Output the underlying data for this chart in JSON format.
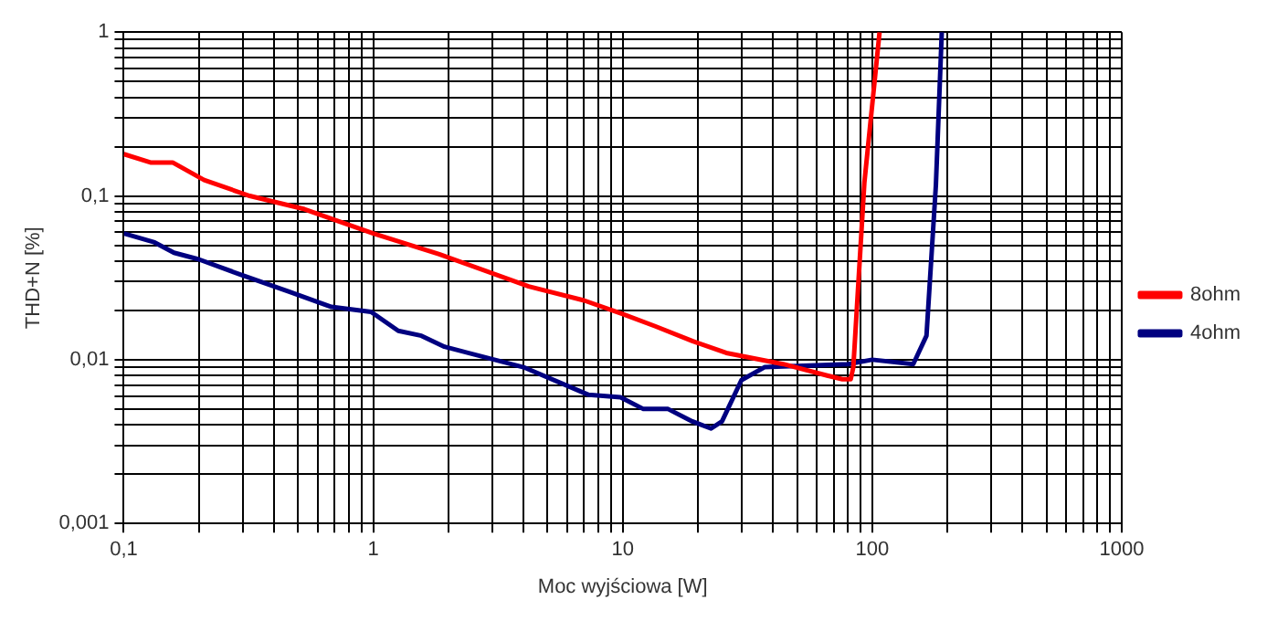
{
  "chart_data": {
    "type": "line",
    "xlabel": "Moc wyjściowa [W]",
    "ylabel": "THD+N [%]",
    "log": "xy",
    "grid": true,
    "legend": "right",
    "marker": "none",
    "line_style": "solid",
    "xlim": [
      0.1,
      1000
    ],
    "ylim": [
      0.001,
      1
    ],
    "xticks": [
      {
        "value": 0.1,
        "label": "0,1"
      },
      {
        "value": 0.2,
        "label": null
      },
      {
        "value": 0.3,
        "label": null
      },
      {
        "value": 0.4,
        "label": null
      },
      {
        "value": 0.5,
        "label": null
      },
      {
        "value": 0.6,
        "label": null
      },
      {
        "value": 0.7,
        "label": null
      },
      {
        "value": 0.8,
        "label": null
      },
      {
        "value": 0.9,
        "label": null
      },
      1,
      {
        "value": 2,
        "label": null
      },
      {
        "value": 3,
        "label": null
      },
      {
        "value": 4,
        "label": null
      },
      {
        "value": 5,
        "label": null
      },
      {
        "value": 6,
        "label": null
      },
      {
        "value": 7,
        "label": null
      },
      {
        "value": 8,
        "label": null
      },
      {
        "value": 9,
        "label": null
      },
      10,
      {
        "value": 20,
        "label": null
      },
      {
        "value": 30,
        "label": null
      },
      {
        "value": 40,
        "label": null
      },
      {
        "value": 50,
        "label": null
      },
      {
        "value": 60,
        "label": null
      },
      {
        "value": 70,
        "label": null
      },
      {
        "value": 80,
        "label": null
      },
      {
        "value": 90,
        "label": null
      },
      100,
      {
        "value": 200,
        "label": null
      },
      {
        "value": 300,
        "label": null
      },
      {
        "value": 400,
        "label": null
      },
      {
        "value": 500,
        "label": null
      },
      {
        "value": 600,
        "label": null
      },
      {
        "value": 700,
        "label": null
      },
      {
        "value": 800,
        "label": null
      },
      {
        "value": 900,
        "label": null
      },
      1000
    ],
    "yticks": [
      {
        "value": 0.001,
        "label": "0,001"
      },
      {
        "value": 0.002,
        "label": null
      },
      {
        "value": 0.003,
        "label": null
      },
      {
        "value": 0.004,
        "label": null
      },
      {
        "value": 0.005,
        "label": null
      },
      {
        "value": 0.006,
        "label": null
      },
      {
        "value": 0.007,
        "label": null
      },
      {
        "value": 0.008,
        "label": null
      },
      {
        "value": 0.009,
        "label": null
      },
      {
        "value": 0.01,
        "label": "0,01"
      },
      {
        "value": 0.02,
        "label": null
      },
      {
        "value": 0.03,
        "label": null
      },
      {
        "value": 0.04,
        "label": null
      },
      {
        "value": 0.05,
        "label": null
      },
      {
        "value": 0.06,
        "label": null
      },
      {
        "value": 0.07,
        "label": null
      },
      {
        "value": 0.08,
        "label": null
      },
      {
        "value": 0.09,
        "label": null
      },
      {
        "value": 0.1,
        "label": "0,1"
      },
      {
        "value": 0.2,
        "label": null
      },
      {
        "value": 0.3,
        "label": null
      },
      {
        "value": 0.4,
        "label": null
      },
      {
        "value": 0.5,
        "label": null
      },
      {
        "value": 0.6,
        "label": null
      },
      {
        "value": 0.7,
        "label": null
      },
      {
        "value": 0.8,
        "label": null
      },
      {
        "value": 0.9,
        "label": null
      },
      1
    ],
    "series": [
      {
        "name": "8ohm",
        "color": "#ff0000",
        "x": [
          0.1,
          0.128,
          0.157,
          0.21,
          0.32,
          0.53,
          1,
          1.84,
          4.2,
          7,
          10,
          13.5,
          19,
          26,
          44,
          66,
          76,
          82,
          84,
          93,
          107
        ],
        "values": [
          0.18,
          0.16,
          0.16,
          0.125,
          0.1,
          0.083,
          0.059,
          0.044,
          0.028,
          0.023,
          0.019,
          0.016,
          0.013,
          0.011,
          0.0094,
          0.008,
          0.0076,
          0.0076,
          0.009,
          0.12,
          1
        ]
      },
      {
        "name": "4ohm",
        "color": "#000080",
        "x": [
          0.1,
          0.133,
          0.159,
          0.2,
          0.295,
          0.46,
          0.68,
          0.98,
          1.26,
          1.56,
          1.93,
          4,
          7.3,
          9.8,
          12.1,
          15.2,
          19,
          22.6,
          25,
          29.9,
          37,
          80,
          100,
          146,
          165,
          180,
          190
        ],
        "values": [
          0.059,
          0.052,
          0.045,
          0.041,
          0.033,
          0.026,
          0.021,
          0.0196,
          0.015,
          0.014,
          0.012,
          0.009,
          0.0061,
          0.0059,
          0.005,
          0.005,
          0.0042,
          0.0038,
          0.0042,
          0.0075,
          0.009,
          0.0094,
          0.01,
          0.0094,
          0.014,
          0.117,
          1
        ]
      }
    ]
  }
}
